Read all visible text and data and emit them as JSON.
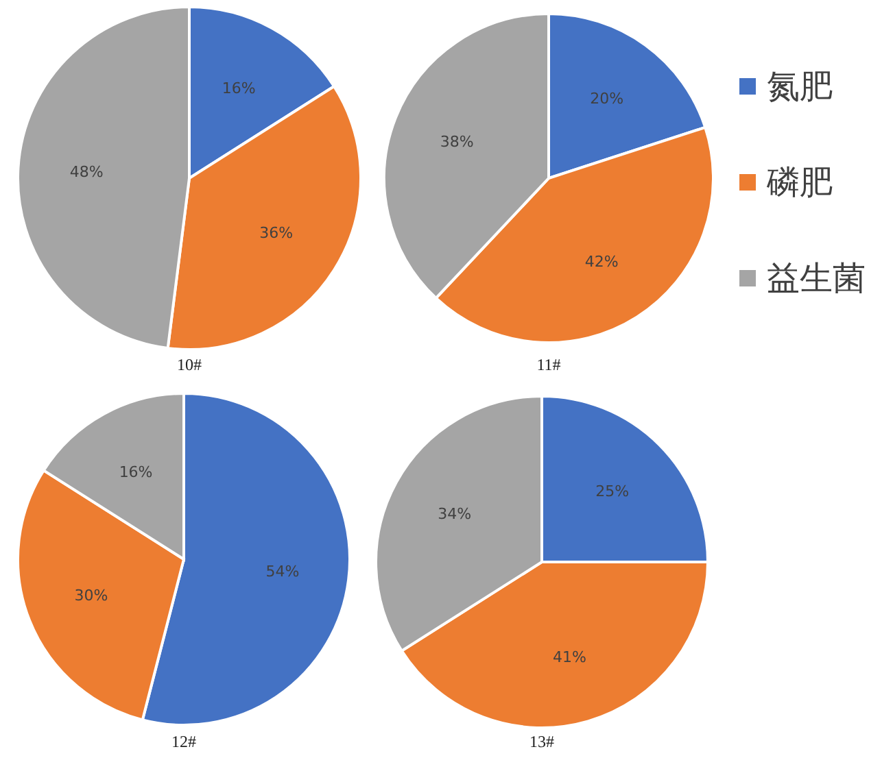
{
  "chart_data": [
    {
      "type": "pie",
      "title": "10#",
      "categories": [
        null,
        null,
        null
      ],
      "values": [
        16,
        36,
        48
      ],
      "value_labels": [
        "16%",
        "36%",
        "48%"
      ],
      "colors": [
        "#4472c4",
        "#ed7d31",
        "#a5a5a5"
      ]
    },
    {
      "type": "pie",
      "title": "11#",
      "categories": [
        "氮肥",
        "磷肥",
        "益生菌"
      ],
      "values": [
        20,
        42,
        38
      ],
      "value_labels": [
        "20%",
        "42%",
        "38%"
      ],
      "colors": [
        "#4472c4",
        "#ed7d31",
        "#a5a5a5"
      ],
      "legend": "right"
    },
    {
      "type": "pie",
      "title": "12#",
      "categories": [
        null,
        null,
        null
      ],
      "values": [
        54,
        30,
        16
      ],
      "value_labels": [
        "54%",
        "30%",
        "16%"
      ],
      "colors": [
        "#4472c4",
        "#ed7d31",
        "#a5a5a5"
      ]
    },
    {
      "type": "pie",
      "title": "13#",
      "categories": [
        null,
        null,
        null
      ],
      "values": [
        25,
        41,
        34
      ],
      "value_labels": [
        "25%",
        "41%",
        "34%"
      ],
      "colors": [
        "#4472c4",
        "#ed7d31",
        "#a5a5a5"
      ]
    }
  ]
}
